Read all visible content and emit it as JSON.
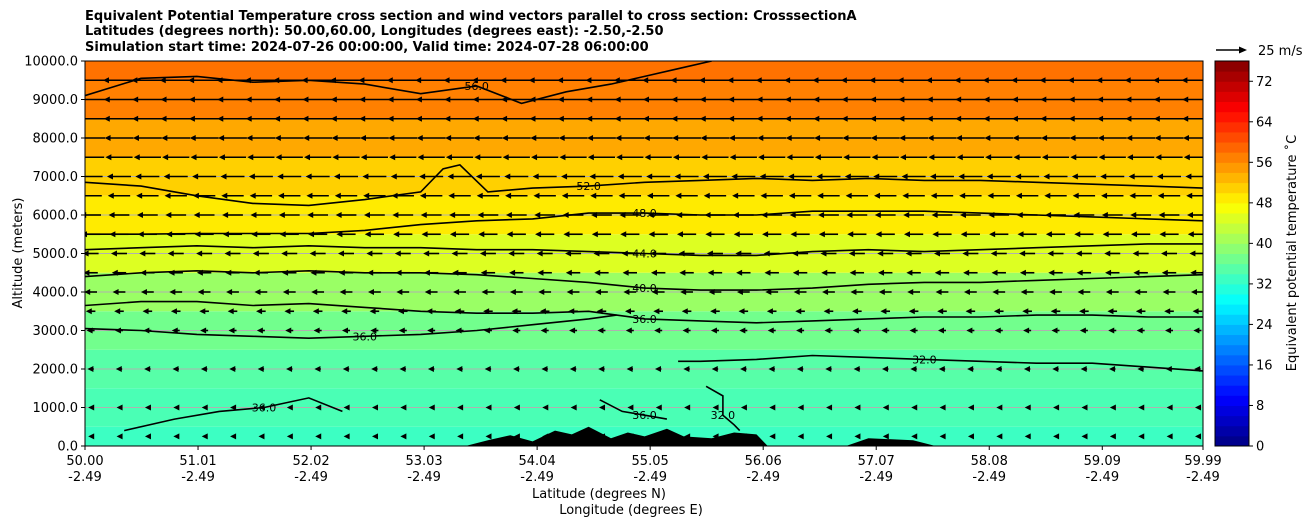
{
  "chart_data": {
    "type": "cross-section",
    "title": [
      "Equivalent Potential Temperature cross section and wind vectors parallel to cross section: CrosssectionA",
      "Latitudes (degrees north): 50.00,60.00, Longitudes (degrees east): -2.50,-2.50",
      "Simulation start time: 2024-07-26 00:00:00, Valid time: 2024-07-28 06:00:00"
    ],
    "xlabel_line1": "Latitude (degrees N)",
    "xlabel_line2": "Longitude (degrees E)",
    "ylabel": "Altitude (meters)",
    "xlim": [
      50.0,
      59.99
    ],
    "ylim": [
      0,
      10000
    ],
    "x_ticks": [
      {
        "lat": "50.00",
        "lon": "-2.49",
        "value": 50.0
      },
      {
        "lat": "51.01",
        "lon": "-2.49",
        "value": 51.01
      },
      {
        "lat": "52.02",
        "lon": "-2.49",
        "value": 52.02
      },
      {
        "lat": "53.03",
        "lon": "-2.49",
        "value": 53.03
      },
      {
        "lat": "54.04",
        "lon": "-2.49",
        "value": 54.04
      },
      {
        "lat": "55.05",
        "lon": "-2.49",
        "value": 55.05
      },
      {
        "lat": "56.06",
        "lon": "-2.49",
        "value": 56.06
      },
      {
        "lat": "57.07",
        "lon": "-2.49",
        "value": 57.07
      },
      {
        "lat": "58.08",
        "lon": "-2.49",
        "value": 58.08
      },
      {
        "lat": "59.09",
        "lon": "-2.49",
        "value": 59.09
      },
      {
        "lat": "59.99",
        "lon": "-2.49",
        "value": 59.99
      }
    ],
    "y_ticks": [
      {
        "label": "0.0",
        "value": 0
      },
      {
        "label": "1000.0",
        "value": 1000
      },
      {
        "label": "2000.0",
        "value": 2000
      },
      {
        "label": "3000.0",
        "value": 3000
      },
      {
        "label": "4000.0",
        "value": 4000
      },
      {
        "label": "5000.0",
        "value": 5000
      },
      {
        "label": "6000.0",
        "value": 6000
      },
      {
        "label": "7000.0",
        "value": 7000
      },
      {
        "label": "8000.0",
        "value": 8000
      },
      {
        "label": "9000.0",
        "value": 9000
      },
      {
        "label": "10000.0",
        "value": 10000
      }
    ],
    "colorbar": {
      "label": "Equivalent potential temperature ˚C",
      "min": 0,
      "max": 76,
      "step": 2,
      "ticks": [
        "0",
        "8",
        "16",
        "24",
        "32",
        "40",
        "48",
        "56",
        "64",
        "72"
      ],
      "tick_values": [
        0,
        8,
        16,
        24,
        32,
        40,
        48,
        56,
        64,
        72
      ]
    },
    "quiver_key": "25 m/s",
    "theta_e_bands": [
      {
        "altitude": 0,
        "value": 33
      },
      {
        "altitude": 1000,
        "value": 34
      },
      {
        "altitude": 2000,
        "value": 35
      },
      {
        "altitude": 3000,
        "value": 37
      },
      {
        "altitude": 4000,
        "value": 40
      },
      {
        "altitude": 5000,
        "value": 45
      },
      {
        "altitude": 6000,
        "value": 49
      },
      {
        "altitude": 7000,
        "value": 51
      },
      {
        "altitude": 8000,
        "value": 54
      },
      {
        "altitude": 9000,
        "value": 57
      },
      {
        "altitude": 10000,
        "value": 58
      }
    ],
    "contours": [
      {
        "label": "56.0",
        "x": [
          50.0,
          50.5,
          51.0,
          51.5,
          52.0,
          52.5,
          53.0,
          53.5,
          53.9,
          54.3,
          54.7,
          55.0,
          55.3,
          55.6
        ],
        "y": [
          9100,
          9550,
          9600,
          9450,
          9500,
          9400,
          9150,
          9350,
          8900,
          9200,
          9400,
          9600,
          9800,
          10000
        ]
      },
      {
        "label": "52.0",
        "x": [
          50.0,
          50.5,
          51.0,
          51.5,
          52.0,
          52.5,
          53.0,
          53.2,
          53.35,
          53.6,
          54.0,
          54.5,
          55.0,
          55.5,
          56.0,
          56.5,
          57.0,
          57.5,
          58.0,
          58.5,
          59.0,
          59.5,
          59.99
        ],
        "y": [
          6850,
          6750,
          6500,
          6300,
          6250,
          6400,
          6600,
          7200,
          7300,
          6600,
          6700,
          6750,
          6850,
          6900,
          6950,
          6900,
          6950,
          6900,
          6900,
          6850,
          6800,
          6750,
          6700
        ]
      },
      {
        "label": "48.0",
        "x": [
          50.0,
          50.5,
          51.0,
          51.5,
          52.0,
          52.5,
          53.0,
          53.5,
          54.0,
          54.5,
          55.0,
          55.5,
          56.0,
          56.5,
          57.0,
          57.5,
          58.0,
          58.5,
          59.0,
          59.5,
          59.99
        ],
        "y": [
          5500,
          5500,
          5520,
          5520,
          5520,
          5600,
          5750,
          5850,
          5900,
          6050,
          6050,
          6000,
          6000,
          6100,
          6100,
          6100,
          6050,
          6000,
          5950,
          5900,
          5850
        ]
      },
      {
        "label": "44.0",
        "x": [
          50.0,
          50.5,
          51.0,
          51.5,
          52.0,
          52.5,
          53.0,
          53.5,
          54.0,
          54.5,
          55.0,
          55.5,
          56.0,
          56.5,
          57.0,
          57.5,
          58.0,
          58.5,
          59.0,
          59.5,
          59.99
        ],
        "y": [
          5100,
          5150,
          5200,
          5150,
          5200,
          5150,
          5150,
          5100,
          5100,
          5050,
          5000,
          4950,
          4950,
          5050,
          5100,
          5050,
          5100,
          5150,
          5200,
          5250,
          5250
        ]
      },
      {
        "label": "40.0",
        "x": [
          50.0,
          50.5,
          51.0,
          51.5,
          52.0,
          52.5,
          53.0,
          53.5,
          54.0,
          54.5,
          55.0,
          55.5,
          56.0,
          56.5,
          57.0,
          57.5,
          58.0,
          58.5,
          59.0,
          59.5,
          59.99
        ],
        "y": [
          4400,
          4500,
          4550,
          4500,
          4550,
          4500,
          4500,
          4450,
          4350,
          4250,
          4100,
          4050,
          4050,
          4100,
          4200,
          4250,
          4250,
          4300,
          4350,
          4400,
          4450
        ]
      },
      {
        "label": "36.0",
        "x": [
          50.0,
          50.5,
          51.0,
          51.5,
          52.0,
          52.5,
          53.0,
          53.5,
          54.0,
          54.5,
          55.0,
          55.5,
          56.0,
          56.5,
          57.0,
          57.5,
          58.0,
          58.5,
          59.0,
          59.5,
          59.99
        ],
        "y": [
          3650,
          3750,
          3750,
          3650,
          3700,
          3600,
          3500,
          3450,
          3450,
          3500,
          3300,
          3250,
          3200,
          3250,
          3300,
          3350,
          3350,
          3400,
          3400,
          3350,
          3350
        ]
      },
      {
        "label": "36.0",
        "x": [
          50.0,
          50.5,
          51.0,
          51.5,
          52.0,
          52.5,
          53.0,
          53.5,
          54.0,
          54.5,
          54.75
        ],
        "y": [
          3050,
          3000,
          2900,
          2850,
          2800,
          2850,
          2900,
          3000,
          3150,
          3300,
          3400
        ]
      },
      {
        "label": "32.0",
        "x": [
          55.3,
          55.5,
          56.0,
          56.5,
          57.0,
          57.5,
          58.0,
          58.5,
          59.0,
          59.5,
          59.99
        ],
        "y": [
          2200,
          2200,
          2250,
          2350,
          2300,
          2250,
          2200,
          2150,
          2150,
          2050,
          1950
        ]
      },
      {
        "label": "32.0",
        "x": [
          55.55,
          55.7,
          55.7,
          55.8,
          55.85
        ],
        "y": [
          1550,
          1300,
          800,
          550,
          400
        ]
      },
      {
        "label": "36.0",
        "x": [
          50.35,
          50.8,
          51.2,
          51.6,
          52.0,
          52.3
        ],
        "y": [
          400,
          700,
          900,
          1000,
          1250,
          900
        ]
      },
      {
        "label": "36.0",
        "x": [
          54.6,
          54.8,
          55.0,
          55.2
        ],
        "y": [
          1200,
          900,
          800,
          700
        ]
      }
    ],
    "terrain": {
      "x": [
        53.4,
        53.6,
        53.8,
        54.0,
        54.2,
        54.35,
        54.5,
        54.7,
        54.85,
        55.0,
        55.2,
        55.35,
        55.6,
        55.8,
        56.0,
        56.1,
        56.3,
        56.5,
        56.8,
        57.0,
        57.4,
        57.6,
        57.8
      ],
      "y": [
        0,
        150,
        280,
        120,
        400,
        300,
        500,
        200,
        350,
        250,
        450,
        250,
        200,
        350,
        300,
        0,
        0,
        0,
        0,
        200,
        150,
        0,
        0
      ]
    },
    "wind_u_profile": [
      {
        "altitude": 250,
        "u": -3
      },
      {
        "altitude": 1000,
        "u": -3
      },
      {
        "altitude": 2000,
        "u": -4
      },
      {
        "altitude": 3000,
        "u": -5
      },
      {
        "altitude": 3500,
        "u": -6
      },
      {
        "altitude": 4000,
        "u": -8
      },
      {
        "altitude": 4500,
        "u": -9
      },
      {
        "altitude": 5000,
        "u": -10
      },
      {
        "altitude": 5500,
        "u": -12
      },
      {
        "altitude": 6000,
        "u": -13
      },
      {
        "altitude": 6500,
        "u": -14
      },
      {
        "altitude": 7000,
        "u": -15
      },
      {
        "altitude": 7500,
        "u": -17
      },
      {
        "altitude": 8000,
        "u": -18
      },
      {
        "altitude": 8500,
        "u": -19
      },
      {
        "altitude": 9000,
        "u": -19
      },
      {
        "altitude": 9500,
        "u": -20
      }
    ]
  }
}
